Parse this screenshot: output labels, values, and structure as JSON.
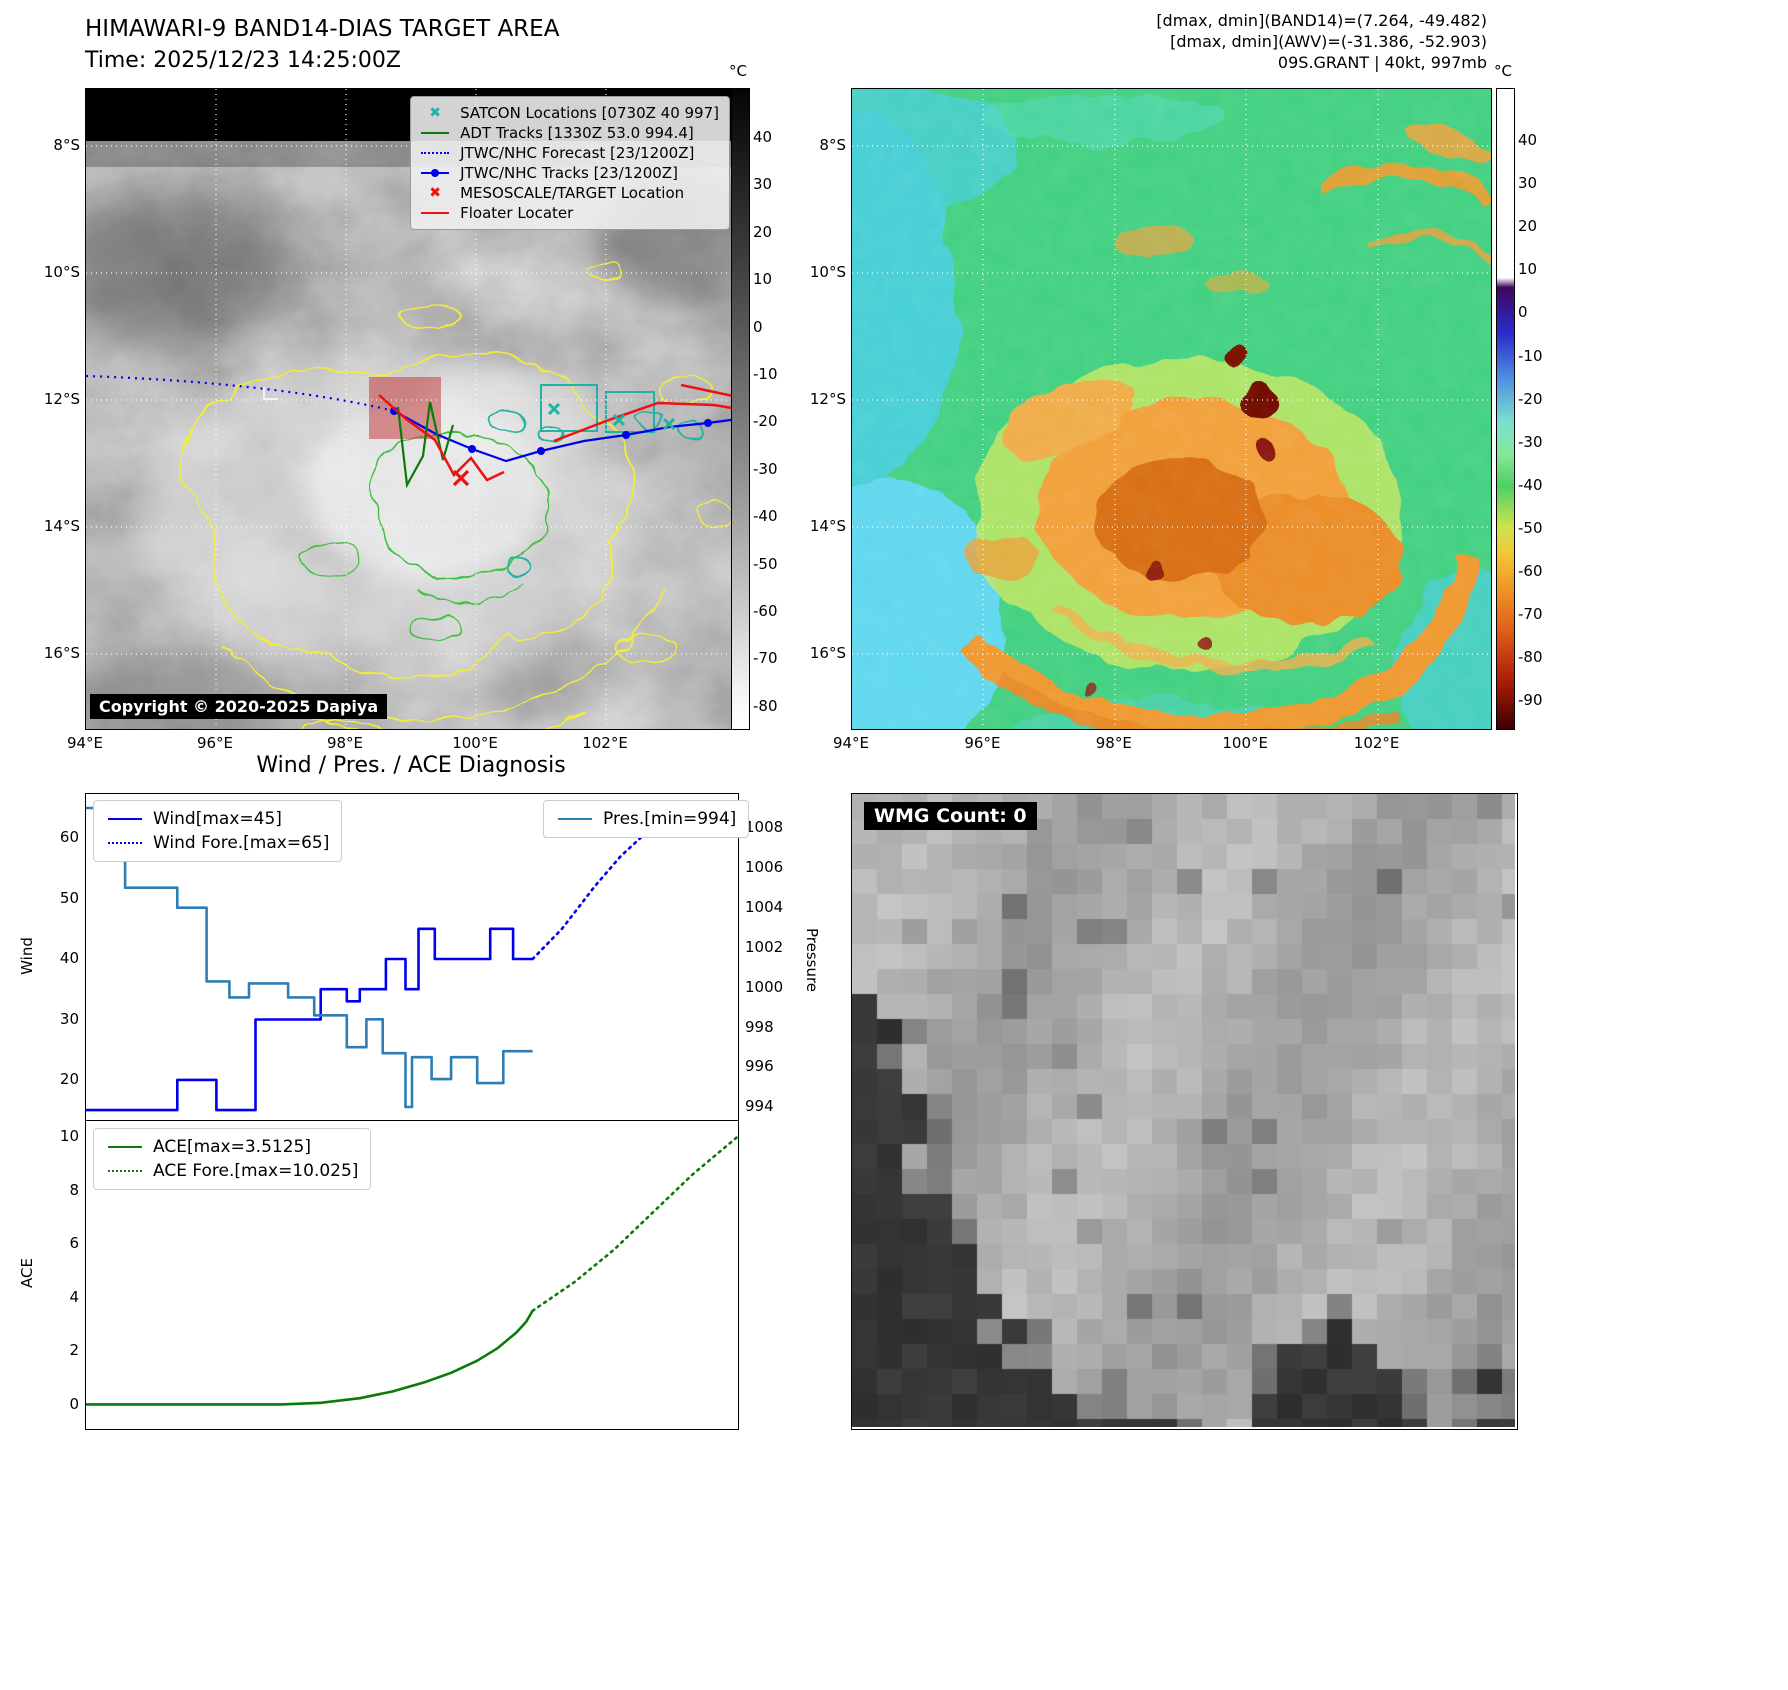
{
  "band14_panel": {
    "title": "HIMAWARI-9 BAND14-DIAS TARGET AREA",
    "subtitle": "Time: 2025/12/23 14:25:00Z",
    "copyright": "Copyright © 2020-2025 Dapiya",
    "legend": [
      {
        "label": "SATCON Locations [0730Z 40 997]",
        "marker": "x",
        "color": "#26b3a7"
      },
      {
        "label": "ADT Tracks [1330Z 53.0 994.4]",
        "marker": "line",
        "color": "#0b7a0b"
      },
      {
        "label": "JTWC/NHC Forecast [23/1200Z]",
        "marker": "dotted",
        "color": "#0000ee"
      },
      {
        "label": "JTWC/NHC Tracks [23/1200Z]",
        "marker": "line-dot",
        "color": "#0000ee"
      },
      {
        "label": "MESOSCALE/TARGET Location",
        "marker": "x",
        "color": "#ee1111"
      },
      {
        "label": "Floater Locater",
        "marker": "line",
        "color": "#ee1111"
      }
    ],
    "x_ticks": [
      "94°E",
      "96°E",
      "98°E",
      "100°E",
      "102°E"
    ],
    "y_ticks": [
      "8°S",
      "10°S",
      "12°S",
      "14°S",
      "16°S"
    ],
    "colorbar_unit": "°C",
    "colorbar_ticks": [
      "40",
      "30",
      "20",
      "10",
      "0",
      "-10",
      "-20",
      "-30",
      "-40",
      "-50",
      "-60",
      "-70",
      "-80"
    ]
  },
  "awv_panel": {
    "header_lines": [
      "[dmax, dmin](BAND14)=(7.264, -49.482)",
      "[dmax, dmin](AWV)=(-31.386, -52.903)",
      "09S.GRANT | 40kt, 997mb"
    ],
    "x_ticks": [
      "94°E",
      "96°E",
      "98°E",
      "100°E",
      "102°E"
    ],
    "y_ticks": [
      "8°S",
      "10°S",
      "12°S",
      "14°S",
      "16°S"
    ],
    "colorbar_unit": "°C",
    "colorbar_ticks": [
      "40",
      "30",
      "20",
      "10",
      "0",
      "-10",
      "-20",
      "-30",
      "-40",
      "-50",
      "-60",
      "-70",
      "-80",
      "-90"
    ]
  },
  "wmg_panel": {
    "label": "WMG Count: 0"
  },
  "chart_data": [
    {
      "type": "line",
      "name": "wind_pressure_diagnosis",
      "title": "Wind / Pres. / ACE Diagnosis",
      "ylabel_left": "Wind",
      "ylabel_right": "Pressure",
      "ylim_left": [
        13.2,
        67.3
      ],
      "ylim_right": [
        993.3,
        1009.7
      ],
      "yticks_left": [
        60,
        50,
        40,
        30,
        20
      ],
      "yticks_right": [
        1008,
        1006,
        1004,
        1002,
        1000,
        998,
        996,
        994
      ],
      "legend_position": "upper left / upper right",
      "grid": false,
      "series": [
        {
          "name": "Wind[max=45]",
          "color": "#0000ee",
          "style": "solid",
          "axis": "left",
          "points": [
            [
              0,
              15
            ],
            [
              0.14,
              15
            ],
            [
              0.14,
              20
            ],
            [
              0.2,
              20
            ],
            [
              0.2,
              15
            ],
            [
              0.26,
              15
            ],
            [
              0.26,
              30
            ],
            [
              0.36,
              30
            ],
            [
              0.36,
              35
            ],
            [
              0.4,
              35
            ],
            [
              0.4,
              33
            ],
            [
              0.42,
              33
            ],
            [
              0.42,
              35
            ],
            [
              0.46,
              35
            ],
            [
              0.46,
              40
            ],
            [
              0.49,
              40
            ],
            [
              0.49,
              35
            ],
            [
              0.51,
              35
            ],
            [
              0.51,
              45
            ],
            [
              0.535,
              45
            ],
            [
              0.535,
              40
            ],
            [
              0.62,
              40
            ],
            [
              0.62,
              45
            ],
            [
              0.655,
              45
            ],
            [
              0.655,
              40
            ],
            [
              0.685,
              40
            ]
          ]
        },
        {
          "name": "Wind Fore.[max=65]",
          "color": "#0000ee",
          "style": "dotted",
          "axis": "left",
          "points": [
            [
              0.685,
              40
            ],
            [
              0.73,
              45
            ],
            [
              0.78,
              52
            ],
            [
              0.82,
              57
            ],
            [
              0.86,
              61
            ],
            [
              0.9,
              63
            ],
            [
              0.95,
              64.5
            ],
            [
              1,
              65
            ]
          ]
        },
        {
          "name": "Pres.[min=994]",
          "color": "#2e7eb3",
          "style": "solid",
          "axis": "right",
          "points": [
            [
              0,
              1009
            ],
            [
              0.06,
              1009
            ],
            [
              0.06,
              1005
            ],
            [
              0.14,
              1005
            ],
            [
              0.14,
              1004
            ],
            [
              0.185,
              1004
            ],
            [
              0.185,
              1000.3
            ],
            [
              0.22,
              1000.3
            ],
            [
              0.22,
              999.5
            ],
            [
              0.25,
              999.5
            ],
            [
              0.25,
              1000.2
            ],
            [
              0.31,
              1000.2
            ],
            [
              0.31,
              999.5
            ],
            [
              0.35,
              999.5
            ],
            [
              0.35,
              998.6
            ],
            [
              0.4,
              998.6
            ],
            [
              0.4,
              997
            ],
            [
              0.43,
              997
            ],
            [
              0.43,
              998.4
            ],
            [
              0.455,
              998.4
            ],
            [
              0.455,
              996.7
            ],
            [
              0.49,
              996.7
            ],
            [
              0.49,
              994
            ],
            [
              0.5,
              994
            ],
            [
              0.5,
              996.5
            ],
            [
              0.53,
              996.5
            ],
            [
              0.53,
              995.4
            ],
            [
              0.56,
              995.4
            ],
            [
              0.56,
              996.5
            ],
            [
              0.6,
              996.5
            ],
            [
              0.6,
              995.2
            ],
            [
              0.64,
              995.2
            ],
            [
              0.64,
              996.8
            ],
            [
              0.685,
              996.8
            ]
          ]
        }
      ]
    },
    {
      "type": "line",
      "name": "ace_diagnosis",
      "ylabel_left": "ACE",
      "ylim_left": [
        -0.9,
        10.6
      ],
      "yticks_left": [
        10,
        8,
        6,
        4,
        2,
        0
      ],
      "legend_position": "upper left",
      "grid": false,
      "series": [
        {
          "name": "ACE[max=3.5125]",
          "color": "#0b7a0b",
          "style": "solid",
          "axis": "left",
          "points": [
            [
              0,
              0.02
            ],
            [
              0.3,
              0.02
            ],
            [
              0.36,
              0.08
            ],
            [
              0.42,
              0.25
            ],
            [
              0.47,
              0.5
            ],
            [
              0.52,
              0.85
            ],
            [
              0.56,
              1.2
            ],
            [
              0.6,
              1.65
            ],
            [
              0.63,
              2.1
            ],
            [
              0.66,
              2.7
            ],
            [
              0.675,
              3.1
            ],
            [
              0.685,
              3.5125
            ]
          ]
        },
        {
          "name": "ACE Fore.[max=10.025]",
          "color": "#0b7a0b",
          "style": "dotted",
          "axis": "left",
          "points": [
            [
              0.685,
              3.5125
            ],
            [
              0.75,
              4.6
            ],
            [
              0.81,
              5.8
            ],
            [
              0.87,
              7.2
            ],
            [
              0.93,
              8.6
            ],
            [
              1,
              10.025
            ]
          ]
        }
      ]
    }
  ]
}
